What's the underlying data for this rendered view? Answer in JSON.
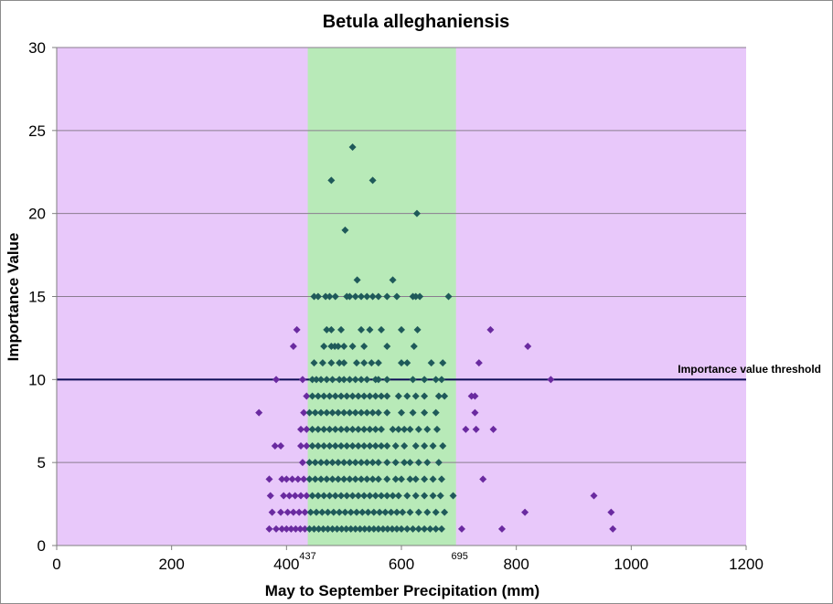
{
  "chart_data": {
    "type": "scatter",
    "title": "Betula  alleghaniensis",
    "xlabel": "May to September Precipitation (mm)",
    "ylabel": "Importance Value",
    "xlim": [
      0,
      1200
    ],
    "ylim": [
      0,
      30
    ],
    "xticks": [
      0,
      200,
      400,
      600,
      800,
      1000,
      1200
    ],
    "yticks": [
      0,
      5,
      10,
      15,
      20,
      25,
      30
    ],
    "grid": "horizontal",
    "colors": {
      "outside_band": "#e8c8fa",
      "inside_band": "#b8eab8",
      "point_outside": "#6a2aa0",
      "point_inside": "#1f5a5a",
      "threshold_line": "#0b0b55",
      "gridline": "#8a7d8f"
    },
    "band": {
      "x_start": 437,
      "x_end": 695,
      "start_label": "437",
      "end_label": "695"
    },
    "threshold": {
      "y": 10,
      "label": "Importance value threshold"
    },
    "points": [
      [
        515,
        24
      ],
      [
        478,
        22
      ],
      [
        550,
        22
      ],
      [
        627,
        20
      ],
      [
        502,
        19
      ],
      [
        523,
        16
      ],
      [
        585,
        16
      ],
      [
        448,
        15
      ],
      [
        455,
        15
      ],
      [
        468,
        15
      ],
      [
        475,
        15
      ],
      [
        485,
        15
      ],
      [
        505,
        15
      ],
      [
        510,
        15
      ],
      [
        520,
        15
      ],
      [
        530,
        15
      ],
      [
        540,
        15
      ],
      [
        550,
        15
      ],
      [
        560,
        15
      ],
      [
        575,
        15
      ],
      [
        592,
        15
      ],
      [
        620,
        15
      ],
      [
        625,
        15
      ],
      [
        632,
        15
      ],
      [
        682,
        15
      ],
      [
        418,
        13
      ],
      [
        470,
        13
      ],
      [
        478,
        13
      ],
      [
        495,
        13
      ],
      [
        530,
        13
      ],
      [
        545,
        13
      ],
      [
        565,
        13
      ],
      [
        600,
        13
      ],
      [
        628,
        13
      ],
      [
        755,
        13
      ],
      [
        412,
        12
      ],
      [
        465,
        12
      ],
      [
        478,
        12
      ],
      [
        484,
        12
      ],
      [
        490,
        12
      ],
      [
        500,
        12
      ],
      [
        515,
        12
      ],
      [
        535,
        12
      ],
      [
        575,
        12
      ],
      [
        622,
        12
      ],
      [
        820,
        12
      ],
      [
        448,
        11
      ],
      [
        463,
        11
      ],
      [
        478,
        11
      ],
      [
        492,
        11
      ],
      [
        500,
        11
      ],
      [
        522,
        11
      ],
      [
        535,
        11
      ],
      [
        548,
        11
      ],
      [
        560,
        11
      ],
      [
        600,
        11
      ],
      [
        610,
        11
      ],
      [
        652,
        11
      ],
      [
        672,
        11
      ],
      [
        735,
        11
      ],
      [
        382,
        10
      ],
      [
        428,
        10
      ],
      [
        445,
        10
      ],
      [
        452,
        10
      ],
      [
        460,
        10
      ],
      [
        470,
        10
      ],
      [
        480,
        10
      ],
      [
        492,
        10
      ],
      [
        500,
        10
      ],
      [
        510,
        10
      ],
      [
        520,
        10
      ],
      [
        530,
        10
      ],
      [
        540,
        10
      ],
      [
        555,
        10
      ],
      [
        560,
        10
      ],
      [
        575,
        10
      ],
      [
        620,
        10
      ],
      [
        640,
        10
      ],
      [
        660,
        10
      ],
      [
        670,
        10
      ],
      [
        860,
        10
      ],
      [
        435,
        9
      ],
      [
        445,
        9
      ],
      [
        455,
        9
      ],
      [
        465,
        9
      ],
      [
        475,
        9
      ],
      [
        485,
        9
      ],
      [
        495,
        9
      ],
      [
        505,
        9
      ],
      [
        515,
        9
      ],
      [
        525,
        9
      ],
      [
        535,
        9
      ],
      [
        545,
        9
      ],
      [
        555,
        9
      ],
      [
        565,
        9
      ],
      [
        575,
        9
      ],
      [
        595,
        9
      ],
      [
        610,
        9
      ],
      [
        625,
        9
      ],
      [
        640,
        9
      ],
      [
        665,
        9
      ],
      [
        675,
        9
      ],
      [
        722,
        9
      ],
      [
        728,
        9
      ],
      [
        352,
        8
      ],
      [
        430,
        8
      ],
      [
        440,
        8
      ],
      [
        450,
        8
      ],
      [
        460,
        8
      ],
      [
        470,
        8
      ],
      [
        480,
        8
      ],
      [
        490,
        8
      ],
      [
        500,
        8
      ],
      [
        510,
        8
      ],
      [
        520,
        8
      ],
      [
        530,
        8
      ],
      [
        540,
        8
      ],
      [
        550,
        8
      ],
      [
        560,
        8
      ],
      [
        575,
        8
      ],
      [
        600,
        8
      ],
      [
        620,
        8
      ],
      [
        640,
        8
      ],
      [
        660,
        8
      ],
      [
        728,
        8
      ],
      [
        425,
        7
      ],
      [
        435,
        7
      ],
      [
        445,
        7
      ],
      [
        455,
        7
      ],
      [
        465,
        7
      ],
      [
        475,
        7
      ],
      [
        485,
        7
      ],
      [
        495,
        7
      ],
      [
        505,
        7
      ],
      [
        515,
        7
      ],
      [
        525,
        7
      ],
      [
        535,
        7
      ],
      [
        545,
        7
      ],
      [
        555,
        7
      ],
      [
        565,
        7
      ],
      [
        585,
        7
      ],
      [
        595,
        7
      ],
      [
        605,
        7
      ],
      [
        615,
        7
      ],
      [
        630,
        7
      ],
      [
        645,
        7
      ],
      [
        662,
        7
      ],
      [
        712,
        7
      ],
      [
        730,
        7
      ],
      [
        760,
        7
      ],
      [
        380,
        6
      ],
      [
        390,
        6
      ],
      [
        425,
        6
      ],
      [
        435,
        6
      ],
      [
        445,
        6
      ],
      [
        455,
        6
      ],
      [
        465,
        6
      ],
      [
        475,
        6
      ],
      [
        485,
        6
      ],
      [
        495,
        6
      ],
      [
        505,
        6
      ],
      [
        515,
        6
      ],
      [
        525,
        6
      ],
      [
        535,
        6
      ],
      [
        545,
        6
      ],
      [
        555,
        6
      ],
      [
        565,
        6
      ],
      [
        575,
        6
      ],
      [
        590,
        6
      ],
      [
        605,
        6
      ],
      [
        625,
        6
      ],
      [
        640,
        6
      ],
      [
        655,
        6
      ],
      [
        672,
        6
      ],
      [
        428,
        5
      ],
      [
        440,
        5
      ],
      [
        450,
        5
      ],
      [
        460,
        5
      ],
      [
        470,
        5
      ],
      [
        480,
        5
      ],
      [
        490,
        5
      ],
      [
        500,
        5
      ],
      [
        510,
        5
      ],
      [
        520,
        5
      ],
      [
        530,
        5
      ],
      [
        540,
        5
      ],
      [
        550,
        5
      ],
      [
        560,
        5
      ],
      [
        575,
        5
      ],
      [
        590,
        5
      ],
      [
        605,
        5
      ],
      [
        615,
        5
      ],
      [
        630,
        5
      ],
      [
        645,
        5
      ],
      [
        665,
        5
      ],
      [
        370,
        4
      ],
      [
        392,
        4
      ],
      [
        400,
        4
      ],
      [
        410,
        4
      ],
      [
        420,
        4
      ],
      [
        430,
        4
      ],
      [
        440,
        4
      ],
      [
        450,
        4
      ],
      [
        460,
        4
      ],
      [
        470,
        4
      ],
      [
        480,
        4
      ],
      [
        490,
        4
      ],
      [
        500,
        4
      ],
      [
        510,
        4
      ],
      [
        520,
        4
      ],
      [
        530,
        4
      ],
      [
        540,
        4
      ],
      [
        550,
        4
      ],
      [
        560,
        4
      ],
      [
        575,
        4
      ],
      [
        590,
        4
      ],
      [
        600,
        4
      ],
      [
        615,
        4
      ],
      [
        625,
        4
      ],
      [
        640,
        4
      ],
      [
        655,
        4
      ],
      [
        670,
        4
      ],
      [
        742,
        4
      ],
      [
        372,
        3
      ],
      [
        395,
        3
      ],
      [
        405,
        3
      ],
      [
        415,
        3
      ],
      [
        425,
        3
      ],
      [
        435,
        3
      ],
      [
        445,
        3
      ],
      [
        455,
        3
      ],
      [
        465,
        3
      ],
      [
        475,
        3
      ],
      [
        485,
        3
      ],
      [
        495,
        3
      ],
      [
        505,
        3
      ],
      [
        515,
        3
      ],
      [
        525,
        3
      ],
      [
        535,
        3
      ],
      [
        545,
        3
      ],
      [
        555,
        3
      ],
      [
        565,
        3
      ],
      [
        575,
        3
      ],
      [
        585,
        3
      ],
      [
        595,
        3
      ],
      [
        610,
        3
      ],
      [
        625,
        3
      ],
      [
        640,
        3
      ],
      [
        655,
        3
      ],
      [
        668,
        3
      ],
      [
        690,
        3
      ],
      [
        935,
        3
      ],
      [
        375,
        2
      ],
      [
        390,
        2
      ],
      [
        402,
        2
      ],
      [
        412,
        2
      ],
      [
        422,
        2
      ],
      [
        432,
        2
      ],
      [
        442,
        2
      ],
      [
        452,
        2
      ],
      [
        462,
        2
      ],
      [
        472,
        2
      ],
      [
        482,
        2
      ],
      [
        492,
        2
      ],
      [
        502,
        2
      ],
      [
        512,
        2
      ],
      [
        522,
        2
      ],
      [
        532,
        2
      ],
      [
        542,
        2
      ],
      [
        552,
        2
      ],
      [
        562,
        2
      ],
      [
        572,
        2
      ],
      [
        582,
        2
      ],
      [
        592,
        2
      ],
      [
        602,
        2
      ],
      [
        615,
        2
      ],
      [
        630,
        2
      ],
      [
        645,
        2
      ],
      [
        660,
        2
      ],
      [
        675,
        2
      ],
      [
        815,
        2
      ],
      [
        965,
        2
      ],
      [
        370,
        1
      ],
      [
        382,
        1
      ],
      [
        392,
        1
      ],
      [
        400,
        1
      ],
      [
        408,
        1
      ],
      [
        416,
        1
      ],
      [
        424,
        1
      ],
      [
        432,
        1
      ],
      [
        440,
        1
      ],
      [
        448,
        1
      ],
      [
        456,
        1
      ],
      [
        464,
        1
      ],
      [
        472,
        1
      ],
      [
        480,
        1
      ],
      [
        488,
        1
      ],
      [
        496,
        1
      ],
      [
        504,
        1
      ],
      [
        512,
        1
      ],
      [
        520,
        1
      ],
      [
        528,
        1
      ],
      [
        536,
        1
      ],
      [
        544,
        1
      ],
      [
        552,
        1
      ],
      [
        560,
        1
      ],
      [
        568,
        1
      ],
      [
        576,
        1
      ],
      [
        584,
        1
      ],
      [
        592,
        1
      ],
      [
        600,
        1
      ],
      [
        610,
        1
      ],
      [
        620,
        1
      ],
      [
        630,
        1
      ],
      [
        640,
        1
      ],
      [
        650,
        1
      ],
      [
        660,
        1
      ],
      [
        670,
        1
      ],
      [
        705,
        1
      ],
      [
        775,
        1
      ],
      [
        968,
        1
      ]
    ]
  }
}
